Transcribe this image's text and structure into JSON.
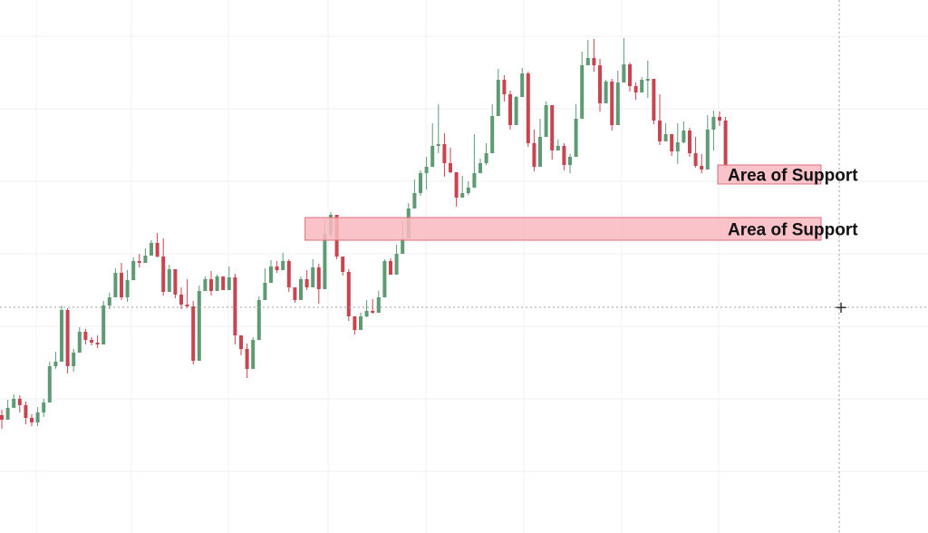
{
  "chart_data": {
    "type": "candlestick",
    "colors": {
      "up": "#5e9a74",
      "down": "#c8444f",
      "zone_fill": "#f9b8bf",
      "zone_border": "#d9707c"
    },
    "zones": [
      {
        "label": "Area of Support",
        "y_top": 182,
        "y_bottom": 203,
        "x_start_bar": 120
      },
      {
        "label": "Area of Support",
        "y_top": 240,
        "y_bottom": 265,
        "x_start_bar": 51
      }
    ],
    "crosshair": {
      "symbol": "+"
    },
    "candles": [
      [
        458,
        463,
        473,
        452
      ],
      [
        463,
        450,
        458,
        441
      ],
      [
        450,
        440,
        447,
        435
      ],
      [
        440,
        447,
        455,
        436
      ],
      [
        447,
        461,
        468,
        443
      ],
      [
        461,
        466,
        470,
        457
      ],
      [
        466,
        455,
        470,
        449
      ],
      [
        455,
        444,
        460,
        440
      ],
      [
        444,
        404,
        409,
        399
      ],
      [
        404,
        399,
        407,
        388
      ],
      [
        399,
        342,
        346,
        337
      ],
      [
        342,
        404,
        412,
        340
      ],
      [
        404,
        389,
        410,
        385
      ],
      [
        389,
        366,
        377,
        361
      ],
      [
        366,
        375,
        380,
        363
      ],
      [
        375,
        378,
        381,
        372
      ],
      [
        378,
        380,
        384,
        370
      ],
      [
        380,
        337,
        342,
        332
      ],
      [
        337,
        328,
        341,
        323
      ],
      [
        328,
        301,
        307,
        296
      ],
      [
        301,
        328,
        331,
        290
      ],
      [
        328,
        309,
        333,
        298
      ],
      [
        309,
        288,
        299,
        284
      ],
      [
        288,
        290,
        295,
        280
      ],
      [
        290,
        282,
        285,
        274
      ],
      [
        282,
        268,
        282,
        265
      ],
      [
        268,
        283,
        284,
        257
      ],
      [
        283,
        322,
        326,
        263
      ],
      [
        322,
        297,
        311,
        292
      ],
      [
        297,
        325,
        329,
        305
      ],
      [
        325,
        336,
        341,
        317
      ],
      [
        336,
        338,
        340,
        308
      ],
      [
        338,
        398,
        402,
        332
      ],
      [
        398,
        321,
        323,
        315
      ],
      [
        321,
        308,
        311,
        305
      ],
      [
        308,
        321,
        326,
        299
      ],
      [
        321,
        305,
        321,
        303
      ],
      [
        305,
        320,
        320,
        305
      ],
      [
        320,
        306,
        313,
        294
      ],
      [
        306,
        370,
        380,
        302
      ],
      [
        370,
        385,
        392,
        370
      ],
      [
        385,
        407,
        417,
        379
      ],
      [
        407,
        375,
        382,
        372
      ],
      [
        375,
        331,
        337,
        327
      ],
      [
        331,
        312,
        316,
        296
      ],
      [
        312,
        294,
        301,
        287
      ],
      [
        294,
        298,
        301,
        288
      ],
      [
        298,
        288,
        296,
        279
      ],
      [
        288,
        317,
        322,
        286
      ],
      [
        317,
        331,
        334,
        328
      ],
      [
        331,
        308,
        313,
        305
      ],
      [
        308,
        317,
        320,
        298
      ],
      [
        317,
        295,
        311,
        286
      ],
      [
        295,
        319,
        335,
        291
      ],
      [
        319,
        258,
        265,
        242
      ],
      [
        258,
        237,
        262,
        234
      ],
      [
        237,
        283,
        286,
        271
      ],
      [
        283,
        300,
        304,
        300
      ],
      [
        300,
        349,
        354,
        297
      ],
      [
        349,
        364,
        369,
        357
      ],
      [
        364,
        349,
        352,
        345
      ],
      [
        349,
        343,
        350,
        331
      ],
      [
        343,
        345,
        346,
        330
      ],
      [
        345,
        328,
        340,
        321
      ],
      [
        328,
        288,
        313,
        286
      ],
      [
        288,
        303,
        303,
        285
      ],
      [
        303,
        280,
        291,
        270
      ],
      [
        280,
        263,
        271,
        244
      ],
      [
        263,
        230,
        237,
        224
      ],
      [
        230,
        213,
        216,
        198
      ],
      [
        213,
        191,
        216,
        188
      ],
      [
        191,
        184,
        209,
        173
      ],
      [
        184,
        161,
        169,
        136
      ],
      [
        161,
        159,
        169,
        115
      ],
      [
        159,
        180,
        195,
        147
      ],
      [
        180,
        190,
        191,
        163
      ],
      [
        190,
        218,
        228,
        193
      ],
      [
        218,
        213,
        214,
        194
      ],
      [
        213,
        207,
        215,
        200
      ],
      [
        207,
        191,
        195,
        148
      ],
      [
        191,
        180,
        188,
        175
      ],
      [
        180,
        169,
        182,
        158
      ],
      [
        169,
        128,
        144,
        115
      ],
      [
        128,
        88,
        100,
        76
      ],
      [
        88,
        104,
        112,
        83
      ],
      [
        104,
        138,
        143,
        100
      ],
      [
        138,
        107,
        111,
        106
      ],
      [
        107,
        81,
        87,
        75
      ],
      [
        81,
        158,
        162,
        79
      ],
      [
        158,
        184,
        189,
        143
      ],
      [
        184,
        151,
        155,
        131
      ],
      [
        151,
        116,
        139,
        112
      ],
      [
        116,
        166,
        176,
        162
      ],
      [
        166,
        161,
        163,
        154
      ],
      [
        161,
        182,
        188,
        158
      ],
      [
        182,
        173,
        191,
        170
      ],
      [
        173,
        131,
        140,
        115
      ],
      [
        131,
        72,
        87,
        57
      ],
      [
        72,
        64,
        67,
        44
      ],
      [
        64,
        72,
        79,
        43
      ],
      [
        72,
        114,
        123,
        65
      ],
      [
        114,
        90,
        94,
        88
      ],
      [
        90,
        138,
        144,
        87
      ],
      [
        138,
        91,
        101,
        78
      ],
      [
        91,
        71,
        83,
        42
      ],
      [
        71,
        95,
        101,
        69
      ],
      [
        95,
        102,
        110,
        91
      ],
      [
        102,
        88,
        99,
        85
      ],
      [
        88,
        87,
        108,
        67
      ],
      [
        87,
        133,
        137,
        108
      ],
      [
        133,
        156,
        160,
        104
      ],
      [
        156,
        148,
        152,
        136
      ],
      [
        148,
        167,
        172,
        154
      ],
      [
        167,
        157,
        181,
        136
      ],
      [
        157,
        144,
        158,
        134
      ],
      [
        144,
        169,
        173,
        141
      ],
      [
        169,
        183,
        185,
        151
      ],
      [
        183,
        187,
        191,
        170
      ],
      [
        187,
        143,
        146,
        127
      ],
      [
        143,
        129,
        166,
        122
      ],
      [
        129,
        133,
        139,
        123
      ],
      [
        133,
        183,
        186,
        129
      ]
    ]
  }
}
